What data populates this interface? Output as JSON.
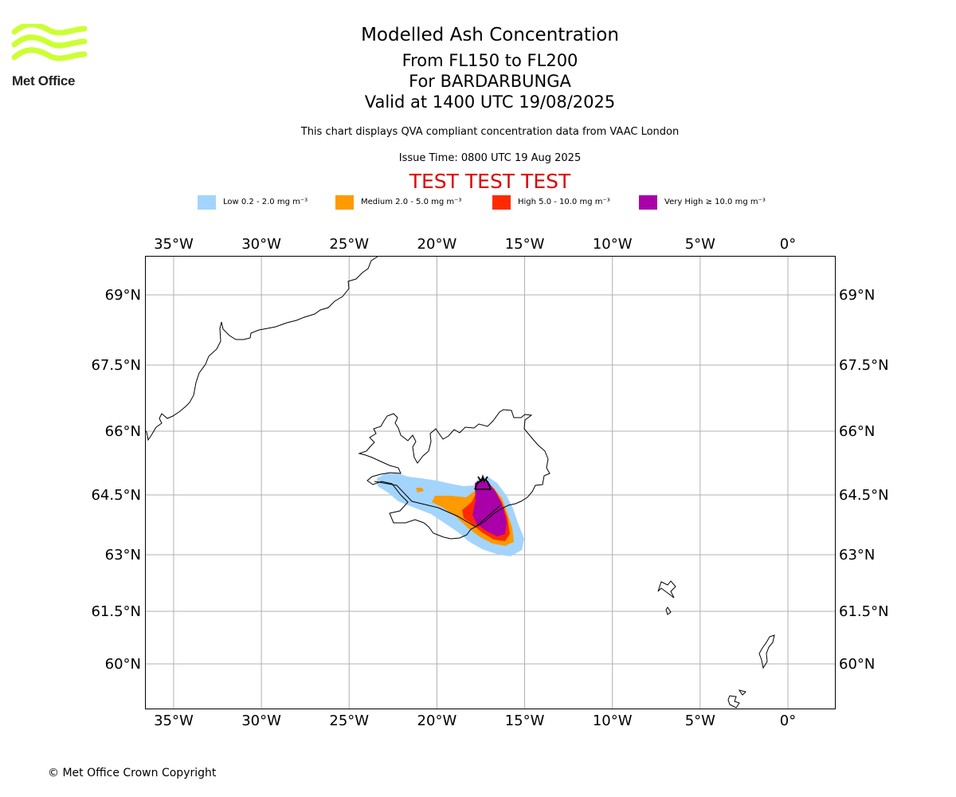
{
  "logo": {
    "text": "Met Office",
    "color": "#ccff33"
  },
  "header": {
    "title": "Modelled Ash Concentration",
    "levels": "From FL150 to FL200",
    "volcano": "For BARDARBUNGA",
    "valid": "Valid at 1400 UTC 19/08/2025",
    "compliance": "This chart displays QVA compliant concentration data from VAAC London",
    "issue_time": "Issue Time: 0800 UTC 19 Aug 2025",
    "test_banner": "TEST TEST TEST"
  },
  "legend": [
    {
      "label": "Low 0.2 - 2.0 mg m⁻³",
      "color": "#a3d4fc"
    },
    {
      "label": "Medium 2.0 - 5.0 mg m⁻³",
      "color": "#ff9a00"
    },
    {
      "label": "High 5.0 - 10.0 mg m⁻³",
      "color": "#ff2a00"
    },
    {
      "label": "Very High  ≥  10.0 mg m⁻³",
      "color": "#aa00aa"
    }
  ],
  "map": {
    "lon_ticks": [
      "35°W",
      "30°W",
      "25°W",
      "20°W",
      "15°W",
      "10°W",
      "5°W",
      "0°"
    ],
    "lat_ticks": [
      "69°N",
      "67.5°N",
      "66°N",
      "64.5°N",
      "63°N",
      "61.5°N",
      "60°N"
    ],
    "lon_values": [
      -35,
      -30,
      -25,
      -20,
      -15,
      -10,
      -5,
      0
    ],
    "lat_values": [
      69,
      67.5,
      66,
      64.5,
      63,
      61.5,
      60
    ],
    "grid": true,
    "volcano_icon": "volcano-icon"
  },
  "footer": {
    "copyright": "© Met Office Crown Copyright"
  }
}
